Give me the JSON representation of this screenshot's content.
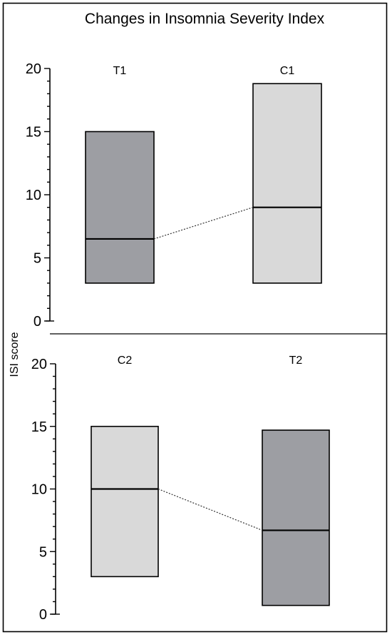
{
  "chart_data": {
    "type": "box",
    "title": "Changes in Insomnia Severity Index",
    "ylabel": "ISI score",
    "ylim": [
      0,
      20
    ],
    "yticks": [
      0,
      5,
      10,
      15,
      20
    ],
    "colors": {
      "dark": "#9d9ea3",
      "light": "#d9d9d9",
      "connector": "#333333"
    },
    "panels": [
      {
        "groups": [
          {
            "label": "T1",
            "min": 3.0,
            "median": 6.5,
            "max": 15.0,
            "color": "#9d9ea3"
          },
          {
            "label": "C1",
            "min": 3.0,
            "median": 9.0,
            "max": 18.8,
            "color": "#d9d9d9"
          }
        ]
      },
      {
        "groups": [
          {
            "label": "C2",
            "min": 3.0,
            "median": 10.0,
            "max": 15.0,
            "color": "#d9d9d9"
          },
          {
            "label": "T2",
            "min": 0.7,
            "median": 6.7,
            "max": 14.7,
            "color": "#9d9ea3"
          }
        ]
      }
    ]
  }
}
